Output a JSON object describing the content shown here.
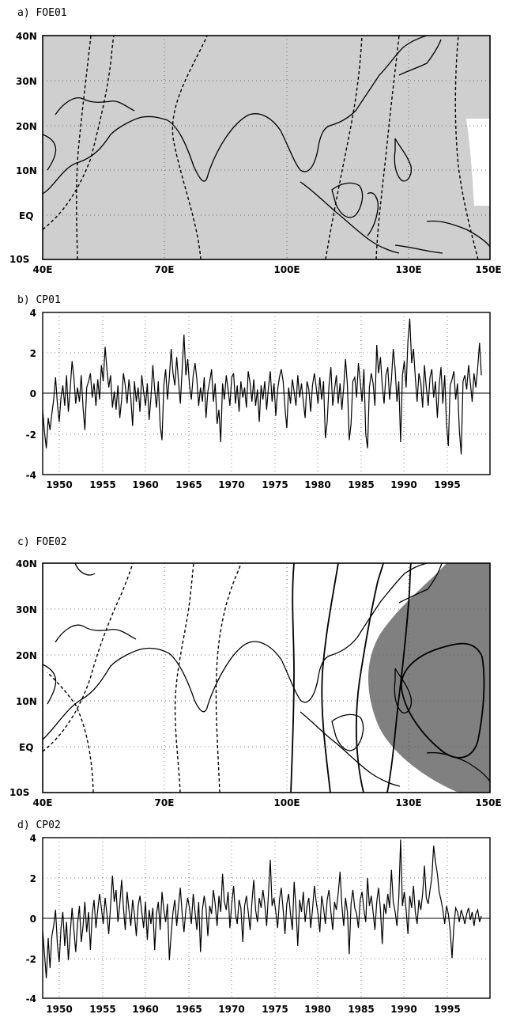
{
  "panels": [
    {
      "id": "a",
      "title": "a) FOE01",
      "type": "map",
      "x_ticks": [
        "40E",
        "70E",
        "100E",
        "130E",
        "150E"
      ],
      "y_ticks": [
        "40N",
        "30N",
        "20N",
        "10N",
        "EQ",
        "10S"
      ],
      "lon_range": [
        40,
        150
      ],
      "lat_range": [
        -10,
        40
      ],
      "shading": "light gray over nearly the whole domain",
      "contours": "dashed, roughly meridional"
    },
    {
      "id": "b",
      "title": "b) CP01",
      "type": "line",
      "x_ticks": [
        "1950",
        "1955",
        "1960",
        "1965",
        "1970",
        "1975",
        "1980",
        "1985",
        "1990",
        "1995"
      ],
      "y_ticks": [
        "4",
        "2",
        "0",
        "-2",
        "-4"
      ],
      "xlim": [
        1948,
        2000
      ],
      "ylim": [
        -4,
        4
      ],
      "grid": "dotted"
    },
    {
      "id": "c",
      "title": "c) FOE02",
      "type": "map",
      "x_ticks": [
        "40E",
        "70E",
        "100E",
        "130E",
        "150E"
      ],
      "y_ticks": [
        "40N",
        "30N",
        "20N",
        "10N",
        "EQ",
        "10S"
      ],
      "lon_range": [
        40,
        150
      ],
      "lat_range": [
        -10,
        40
      ],
      "shading": "dark gray region over the western Pacific east of the Philippines",
      "contours": "dashed in the west, solid in the east, closed solid contour centered near 140E 13N"
    },
    {
      "id": "d",
      "title": "d) CP02",
      "type": "line",
      "x_ticks": [
        "1950",
        "1955",
        "1960",
        "1965",
        "1970",
        "1975",
        "1980",
        "1985",
        "1990",
        "1995"
      ],
      "y_ticks": [
        "4",
        "2",
        "0",
        "-2",
        "-4"
      ],
      "xlim": [
        1948,
        2000
      ],
      "ylim": [
        -4,
        4
      ],
      "grid": "dotted"
    }
  ],
  "chart_data": [
    {
      "type": "line",
      "title": "b) CP01",
      "x_start": 1948,
      "x_end": 1999,
      "ylim": [
        -4,
        4
      ],
      "values": [
        -0.8,
        -1.9,
        -2.7,
        -1.2,
        -1.8,
        -1.0,
        -0.3,
        0.8,
        -0.5,
        -1.4,
        -0.2,
        0.4,
        -0.6,
        0.9,
        -0.9,
        0.2,
        1.6,
        0.8,
        -0.5,
        0.3,
        -0.4,
        0.9,
        -0.7,
        -1.8,
        0.3,
        0.6,
        1.0,
        -0.2,
        0.5,
        -0.6,
        0.7,
        -0.3,
        1.4,
        0.6,
        2.3,
        1.2,
        0.3,
        0.9,
        -0.7,
        0.1,
        -0.8,
        0.4,
        -1.2,
        -0.3,
        1.0,
        0.4,
        -0.5,
        0.7,
        -0.2,
        -1.6,
        0.6,
        -0.4,
        0.3,
        -0.9,
        0.9,
        0.1,
        -0.6,
        0.5,
        -1.3,
        -0.2,
        1.4,
        0.2,
        -0.7,
        0.6,
        -1.6,
        -2.3,
        0.4,
        1.2,
        -0.3,
        0.8,
        2.2,
        1.0,
        0.4,
        1.8,
        0.6,
        -0.5,
        1.2,
        2.9,
        0.9,
        1.7,
        0.4,
        -0.3,
        0.9,
        1.5,
        0.7,
        -0.6,
        0.3,
        -0.4,
        0.8,
        -1.2,
        0.1,
        0.6,
        1.2,
        -0.4,
        0.5,
        -1.5,
        -0.8,
        -2.4,
        0.5,
        -0.3,
        0.9,
        0.2,
        -0.6,
        0.8,
        1.0,
        -0.5,
        0.4,
        -0.9,
        0.6,
        -0.2,
        0.3,
        -0.7,
        1.1,
        0.5,
        -0.4,
        0.7,
        -0.6,
        0.2,
        -1.4,
        0.4,
        -0.3,
        0.6,
        -0.8,
        0.3,
        1.1,
        -0.4,
        0.5,
        -1.1,
        0.2,
        0.8,
        1.2,
        0.6,
        -0.7,
        -1.7,
        0.3,
        -0.5,
        0.7,
        0.1,
        -0.6,
        0.9,
        -0.2,
        0.5,
        -0.4,
        -1.2,
        0.6,
        0.2,
        -0.9,
        0.4,
        1.0,
        0.3,
        -0.5,
        0.8,
        -0.3,
        0.6,
        -2.2,
        -1.4,
        0.4,
        1.3,
        -0.6,
        0.2,
        0.9,
        -0.5,
        0.5,
        -0.8,
        0.3,
        1.7,
        0.4,
        -2.3,
        -1.5,
        0.6,
        0.8,
        -0.2,
        1.5,
        0.6,
        -0.4,
        1.2,
        -2.0,
        -2.7,
        0.3,
        1.0,
        0.5,
        -0.6,
        2.4,
        1.0,
        1.8,
        0.4,
        -0.5,
        0.9,
        1.3,
        -0.3,
        0.7,
        2.2,
        1.2,
        -0.4,
        0.6,
        -2.4,
        0.9,
        1.6,
        0.3,
        2.6,
        3.7,
        1.5,
        2.2,
        0.8,
        -0.4,
        1.0,
        0.5,
        -0.7,
        1.4,
        0.3,
        -0.6,
        0.8,
        1.2,
        -0.2,
        0.6,
        -1.2,
        0.4,
        1.3,
        -0.5,
        0.9,
        -1.5,
        -2.6,
        0.4,
        0.7,
        1.1,
        -0.3,
        0.5,
        -1.8,
        -3.0,
        0.6,
        0.9,
        0.2,
        1.4,
        0.5,
        -0.4,
        1.0,
        0.3,
        1.3,
        2.5,
        0.9
      ]
    },
    {
      "type": "line",
      "title": "d) CP02",
      "x_start": 1948,
      "x_end": 1999,
      "ylim": [
        -4,
        4
      ],
      "values": [
        -0.6,
        -1.8,
        -3.0,
        -1.0,
        -2.5,
        -0.9,
        -0.4,
        0.4,
        -1.3,
        -2.2,
        -0.5,
        0.3,
        -1.4,
        -0.2,
        -2.1,
        -0.8,
        0.5,
        -0.6,
        -1.7,
        -0.3,
        0.6,
        -1.2,
        -0.4,
        0.8,
        -0.7,
        0.3,
        -1.6,
        0.2,
        0.9,
        -0.5,
        0.4,
        1.2,
        0.5,
        -0.3,
        1.0,
        0.2,
        -0.8,
        0.6,
        2.1,
        0.8,
        1.4,
        -0.2,
        0.7,
        1.9,
        0.5,
        -0.6,
        1.3,
        0.4,
        -0.4,
        0.9,
        0.2,
        -0.9,
        0.6,
        1.1,
        0.3,
        -0.5,
        0.8,
        -1.1,
        0.4,
        -0.3,
        0.5,
        -1.6,
        0.2,
        0.8,
        -0.6,
        1.3,
        0.4,
        -0.2,
        0.7,
        -2.1,
        -0.8,
        0.3,
        0.9,
        -0.4,
        0.6,
        1.5,
        0.2,
        -0.7,
        0.4,
        1.0,
        0.5,
        -0.3,
        1.2,
        0.3,
        -0.6,
        0.8,
        -1.7,
        0.4,
        1.1,
        0.5,
        -0.9,
        0.6,
        0.2,
        1.4,
        0.7,
        -0.4,
        1.1,
        0.3,
        2.2,
        0.8,
        0.4,
        1.3,
        -0.5,
        0.7,
        1.6,
        0.2,
        -0.3,
        0.9,
        0.5,
        -1.2,
        0.6,
        1.1,
        0.3,
        -0.6,
        0.8,
        1.9,
        0.4,
        -0.2,
        1.0,
        0.5,
        1.4,
        0.7,
        -0.4,
        1.2,
        2.9,
        0.6,
        1.0,
        0.3,
        -0.5,
        0.9,
        1.5,
        0.4,
        -0.8,
        0.7,
        1.2,
        0.2,
        -0.6,
        1.8,
        0.5,
        -1.4,
        0.9,
        0.3,
        1.3,
        -0.2,
        0.6,
        1.0,
        -0.5,
        0.4,
        1.6,
        0.8,
        0.2,
        -0.7,
        1.1,
        0.5,
        -0.3,
        0.9,
        1.4,
        0.3,
        -0.6,
        0.8,
        0.4,
        1.2,
        2.3,
        0.6,
        -0.4,
        1.0,
        0.3,
        -1.8,
        0.7,
        1.4,
        0.5,
        0.2,
        -0.5,
        0.9,
        1.3,
        0.4,
        -0.2,
        2.0,
        0.6,
        1.1,
        0.3,
        -0.6,
        0.8,
        1.5,
        0.4,
        -1.3,
        0.7,
        0.2,
        1.2,
        0.5,
        2.4,
        0.8,
        0.3,
        -0.4,
        1.0,
        3.9,
        0.6,
        1.3,
        0.4,
        -0.8,
        1.1,
        0.5,
        1.6,
        0.3,
        -0.3,
        0.9,
        0.4,
        1.2,
        2.6,
        1.0,
        0.7,
        1.4,
        2.0,
        3.6,
        2.8,
        2.2,
        1.3,
        0.9,
        0.4,
        -0.3,
        0.6,
        0.2,
        -0.6,
        -2.0,
        -0.4,
        0.5,
        0.3,
        -0.2,
        0.4,
        0.1,
        -0.3,
        0.2,
        0.5,
        -0.1,
        0.3,
        -0.4,
        0.2,
        0.4,
        -0.2,
        0.1
      ]
    }
  ]
}
